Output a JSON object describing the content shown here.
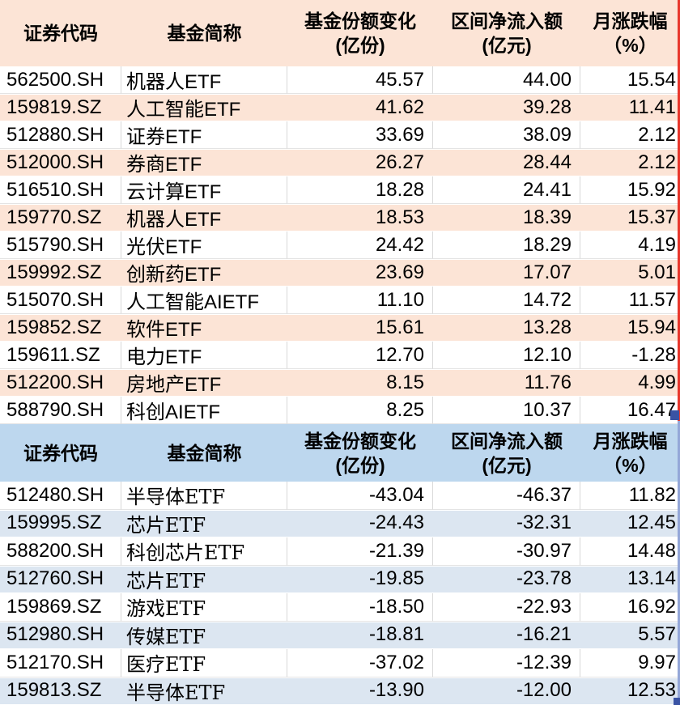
{
  "colors": {
    "orange_header_bg": "#fce4d6",
    "orange_stripe_bg": "#fce4d6",
    "blue_header_bg": "#bdd7ee",
    "blue_stripe_bg": "#dce6f1",
    "red_selection_edge": "#e8372c",
    "blue_selection_edge": "#94a7d8",
    "selection_handle": "#3a53a4",
    "gridline": "#d9d9d9",
    "text": "#000000"
  },
  "tables": [
    {
      "id": "inflow",
      "headers": {
        "code": "证券代码",
        "name": "基金简称",
        "share_change": "基金份额变化",
        "share_change_unit": "(亿份)",
        "net_inflow": "区间净流入额",
        "net_inflow_unit": "(亿元)",
        "monthly_change": "月涨跌幅",
        "monthly_change_unit": "（%）"
      },
      "rows": [
        {
          "code": "562500.SH",
          "name": "机器人ETF",
          "share_change": "45.57",
          "net_inflow": "44.00",
          "monthly_change": "15.54"
        },
        {
          "code": "159819.SZ",
          "name": "人工智能ETF",
          "share_change": "41.62",
          "net_inflow": "39.28",
          "monthly_change": "11.41"
        },
        {
          "code": "512880.SH",
          "name": "证券ETF",
          "share_change": "33.69",
          "net_inflow": "38.09",
          "monthly_change": "2.12"
        },
        {
          "code": "512000.SH",
          "name": "券商ETF",
          "share_change": "26.27",
          "net_inflow": "28.44",
          "monthly_change": "2.12"
        },
        {
          "code": "516510.SH",
          "name": "云计算ETF",
          "share_change": "18.28",
          "net_inflow": "24.41",
          "monthly_change": "15.92"
        },
        {
          "code": "159770.SZ",
          "name": "机器人ETF",
          "share_change": "18.53",
          "net_inflow": "18.39",
          "monthly_change": "15.37"
        },
        {
          "code": "515790.SH",
          "name": "光伏ETF",
          "share_change": "24.42",
          "net_inflow": "18.29",
          "monthly_change": "4.19"
        },
        {
          "code": "159992.SZ",
          "name": "创新药ETF",
          "share_change": "23.69",
          "net_inflow": "17.07",
          "monthly_change": "5.01"
        },
        {
          "code": "515070.SH",
          "name": "人工智能AIETF",
          "share_change": "11.10",
          "net_inflow": "14.72",
          "monthly_change": "11.57"
        },
        {
          "code": "159852.SZ",
          "name": "软件ETF",
          "share_change": "15.61",
          "net_inflow": "13.28",
          "monthly_change": "15.94"
        },
        {
          "code": "159611.SZ",
          "name": "电力ETF",
          "share_change": "12.70",
          "net_inflow": "12.10",
          "monthly_change": "-1.28"
        },
        {
          "code": "512200.SH",
          "name": "房地产ETF",
          "share_change": "8.15",
          "net_inflow": "11.76",
          "monthly_change": "4.99"
        },
        {
          "code": "588790.SH",
          "name": "科创AIETF",
          "share_change": "8.25",
          "net_inflow": "10.37",
          "monthly_change": "16.47"
        }
      ]
    },
    {
      "id": "outflow",
      "headers": {
        "code": "证券代码",
        "name": "基金简称",
        "share_change": "基金份额变化",
        "share_change_unit": "(亿份)",
        "net_inflow": "区间净流入额",
        "net_inflow_unit": "(亿元)",
        "monthly_change": "月涨跌幅",
        "monthly_change_unit": "（%）"
      },
      "rows": [
        {
          "code": "512480.SH",
          "name": "半导体ETF",
          "share_change": "-43.04",
          "net_inflow": "-46.37",
          "monthly_change": "11.82"
        },
        {
          "code": "159995.SZ",
          "name": "芯片ETF",
          "share_change": "-24.43",
          "net_inflow": "-32.31",
          "monthly_change": "12.45"
        },
        {
          "code": "588200.SH",
          "name": "科创芯片ETF",
          "share_change": "-21.39",
          "net_inflow": "-30.97",
          "monthly_change": "14.48"
        },
        {
          "code": "512760.SH",
          "name": "芯片ETF",
          "share_change": "-19.85",
          "net_inflow": "-23.78",
          "monthly_change": "13.14"
        },
        {
          "code": "159869.SZ",
          "name": "游戏ETF",
          "share_change": "-18.50",
          "net_inflow": "-22.93",
          "monthly_change": "16.92"
        },
        {
          "code": "512980.SH",
          "name": "传媒ETF",
          "share_change": "-18.81",
          "net_inflow": "-16.21",
          "monthly_change": "5.57"
        },
        {
          "code": "512170.SH",
          "name": "医疗ETF",
          "share_change": "-37.02",
          "net_inflow": "-12.39",
          "monthly_change": "9.97"
        },
        {
          "code": "159813.SZ",
          "name": "半导体ETF",
          "share_change": "-13.90",
          "net_inflow": "-12.00",
          "monthly_change": "12.53"
        }
      ]
    }
  ]
}
